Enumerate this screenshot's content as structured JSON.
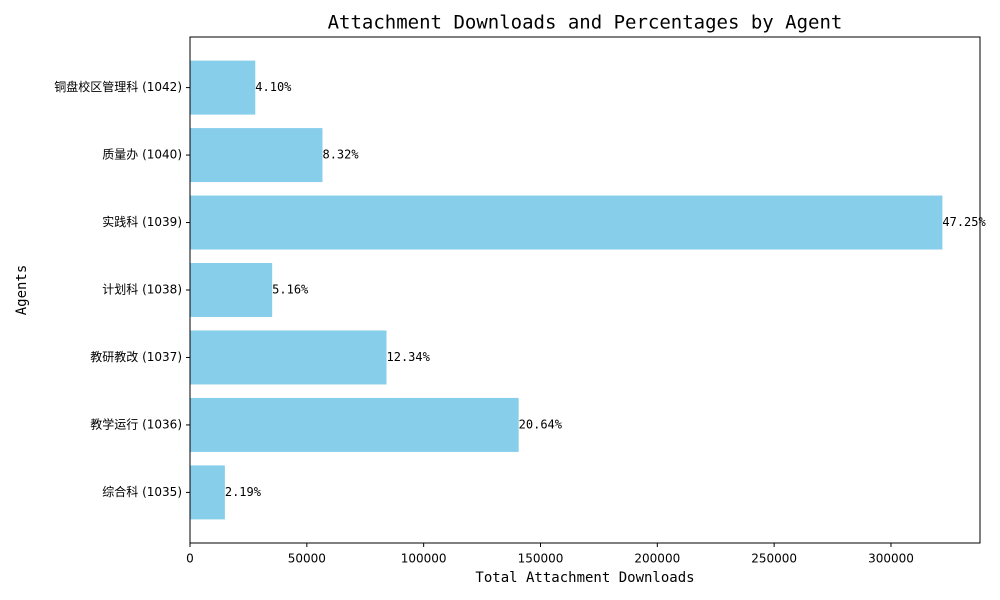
{
  "chart_data": {
    "type": "barh",
    "title": "Attachment Downloads and Percentages by Agent",
    "xlabel": "Total Attachment Downloads",
    "ylabel": "Agents",
    "categories": [
      "综合科 (1035)",
      "教学运行 (1036)",
      "教研教改 (1037)",
      "计划科 (1038)",
      "实践科 (1039)",
      "质量办 (1040)",
      "铜盘校区管理科 (1042)"
    ],
    "values": [
      14925,
      140660,
      84100,
      35165,
      322000,
      56700,
      27940
    ],
    "percent_labels": [
      "2.19%",
      "20.64%",
      "12.34%",
      "5.16%",
      "47.25%",
      "8.32%",
      "4.10%"
    ],
    "color": "#87ceeb",
    "xlim": [
      0,
      338100
    ],
    "xticks": [
      0,
      50000,
      100000,
      150000,
      200000,
      250000,
      300000
    ]
  }
}
